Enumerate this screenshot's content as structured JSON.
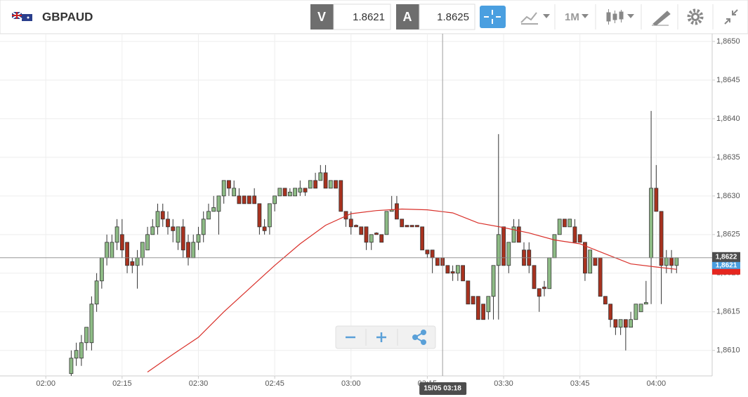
{
  "toolbar": {
    "symbol": "GBPAUD",
    "bid_label": "V",
    "bid": 1.8621,
    "ask_label": "A",
    "ask": 1.8625,
    "timeframe": "1M"
  },
  "chart_data": {
    "type": "candlestick",
    "up_color": "#8dbb85",
    "down_color": "#a8321f",
    "grid": true,
    "xlim": [
      "01:51",
      "04:11"
    ],
    "xticks": [
      "02:00",
      "02:15",
      "02:30",
      "02:45",
      "03:00",
      "03:15",
      "03:30",
      "03:45",
      "04:00"
    ],
    "ylim": [
      1.86067,
      1.8651
    ],
    "yticks": [
      {
        "value": 1.861,
        "label": "1,8610"
      },
      {
        "value": 1.8615,
        "label": "1,8615"
      },
      {
        "value": 1.862,
        "label": "1,8620"
      },
      {
        "value": 1.8625,
        "label": "1,8625"
      },
      {
        "value": 1.863,
        "label": "1,8630"
      },
      {
        "value": 1.8635,
        "label": "1,8635"
      },
      {
        "value": 1.864,
        "label": "1,8640"
      },
      {
        "value": 1.8645,
        "label": "1,8645"
      },
      {
        "value": 1.865,
        "label": "1,8650"
      }
    ],
    "categories": [
      "02:05",
      "02:06",
      "02:07",
      "02:08",
      "02:09",
      "02:10",
      "02:11",
      "02:12",
      "02:13",
      "02:14",
      "02:15",
      "02:16",
      "02:17",
      "02:18",
      "02:19",
      "02:20",
      "02:21",
      "02:22",
      "02:23",
      "02:24",
      "02:25",
      "02:26",
      "02:27",
      "02:28",
      "02:29",
      "02:30",
      "02:31",
      "02:32",
      "02:33",
      "02:34",
      "02:35",
      "02:36",
      "02:37",
      "02:38",
      "02:39",
      "02:40",
      "02:41",
      "02:42",
      "02:43",
      "02:44",
      "02:45",
      "02:46",
      "02:47",
      "02:48",
      "02:49",
      "02:50",
      "02:51",
      "02:52",
      "02:53",
      "02:54",
      "02:55",
      "02:56",
      "02:57",
      "02:58",
      "02:59",
      "03:00",
      "03:01",
      "03:02",
      "03:03",
      "03:04",
      "03:05",
      "03:06",
      "03:07",
      "03:08",
      "03:09",
      "03:10",
      "03:11",
      "03:12",
      "03:13",
      "03:14",
      "03:15",
      "03:16",
      "03:17",
      "03:18",
      "03:19",
      "03:20",
      "03:21",
      "03:22",
      "03:23",
      "03:24",
      "03:25",
      "03:26",
      "03:27",
      "03:28",
      "03:29",
      "03:30",
      "03:31",
      "03:32",
      "03:33",
      "03:34",
      "03:35",
      "03:36",
      "03:37",
      "03:38",
      "03:39",
      "03:40",
      "03:41",
      "03:42",
      "03:43",
      "03:44",
      "03:45",
      "03:46",
      "03:47",
      "03:48",
      "03:49",
      "03:50",
      "03:51",
      "03:52",
      "03:53",
      "03:54",
      "03:55",
      "03:56",
      "03:57",
      "03:58",
      "03:59",
      "04:00",
      "04:01",
      "04:02",
      "04:03",
      "04:04"
    ],
    "open": [
      1.8607,
      1.8609,
      1.8609,
      1.8611,
      1.8611,
      1.8616,
      1.8619,
      1.8622,
      1.8622,
      1.8624,
      1.8625,
      1.8624,
      1.86215,
      1.8621,
      1.8622,
      1.8623,
      1.8625,
      1.8626,
      1.8628,
      1.8627,
      1.8626,
      1.8624,
      1.8626,
      1.8624,
      1.8622,
      1.8624,
      1.8625,
      1.8627,
      1.8628,
      1.8628,
      1.863,
      1.8632,
      1.863,
      1.863,
      1.863,
      1.863,
      1.863,
      1.8629,
      1.8626,
      1.8626,
      1.8629,
      1.863,
      1.8631,
      1.863,
      1.863,
      1.86305,
      1.8631,
      1.8631,
      1.8632,
      1.8632,
      1.8633,
      1.8631,
      1.8632,
      1.8632,
      1.8628,
      1.8627,
      1.86262,
      1.8626,
      1.8626,
      1.8624,
      1.86252,
      1.8625,
      1.8625,
      1.8628,
      1.8629,
      1.8627,
      1.86262,
      1.86262,
      1.86262,
      1.8626,
      1.8623,
      1.8623,
      1.8622,
      1.8622,
      1.8621,
      1.86202,
      1.862,
      1.8621,
      1.8619,
      1.8617,
      1.8617,
      1.8616,
      1.8615,
      1.8617,
      1.8621,
      1.8626,
      1.8621,
      1.8624,
      1.8626,
      1.8623,
      1.8623,
      1.8621,
      1.8618,
      1.86182,
      1.8618,
      1.8622,
      1.8625,
      1.8627,
      1.8626,
      1.8626,
      1.8625,
      1.8624,
      1.862,
      1.8622,
      1.8622,
      1.8617,
      1.8616,
      1.8614,
      1.8613,
      1.8614,
      1.8613,
      1.8614,
      1.8615,
      1.8616,
      1.8622,
      1.8631,
      1.8628,
      1.8621,
      1.8622,
      1.8621
    ],
    "high": [
      1.861,
      1.8611,
      1.8612,
      1.8613,
      1.8617,
      1.862,
      1.8622,
      1.8625,
      1.8625,
      1.8627,
      1.8627,
      1.8624,
      1.8622,
      1.8623,
      1.8624,
      1.8626,
      1.8627,
      1.8629,
      1.8629,
      1.8628,
      1.8627,
      1.8626,
      1.8627,
      1.8625,
      1.8625,
      1.8626,
      1.8628,
      1.8629,
      1.863,
      1.863,
      1.8632,
      1.8632,
      1.8632,
      1.8631,
      1.863,
      1.863,
      1.8631,
      1.8629,
      1.8627,
      1.8629,
      1.863,
      1.8631,
      1.8631,
      1.8631,
      1.8631,
      1.8632,
      1.8631,
      1.8632,
      1.8633,
      1.8634,
      1.8634,
      1.8632,
      1.8632,
      1.8632,
      1.8628,
      1.8628,
      1.86263,
      1.8626,
      1.8626,
      1.8625,
      1.86253,
      1.8625,
      1.8628,
      1.863,
      1.863,
      1.8627,
      1.86262,
      1.86262,
      1.86262,
      1.8626,
      1.8623,
      1.8623,
      1.8622,
      1.8622,
      1.8621,
      1.8621,
      1.8621,
      1.8621,
      1.8619,
      1.8617,
      1.8617,
      1.8616,
      1.8617,
      1.8621,
      1.8638,
      1.8626,
      1.8624,
      1.8627,
      1.8627,
      1.8624,
      1.8624,
      1.8621,
      1.8618,
      1.8619,
      1.8622,
      1.8625,
      1.8627,
      1.8627,
      1.8627,
      1.8627,
      1.8625,
      1.8624,
      1.8623,
      1.8622,
      1.8622,
      1.8617,
      1.8616,
      1.8614,
      1.8614,
      1.8614,
      1.8615,
      1.8616,
      1.8616,
      1.8619,
      1.8641,
      1.8634,
      1.8628,
      1.8623,
      1.8623,
      1.8622
    ],
    "low": [
      1.8606,
      1.8608,
      1.8608,
      1.861,
      1.861,
      1.8615,
      1.8618,
      1.8621,
      1.8622,
      1.8623,
      1.8622,
      1.862,
      1.862,
      1.8618,
      1.8621,
      1.8623,
      1.8625,
      1.8625,
      1.8626,
      1.8625,
      1.8624,
      1.8623,
      1.8622,
      1.8621,
      1.8622,
      1.8623,
      1.8624,
      1.8627,
      1.8628,
      1.8625,
      1.8629,
      1.863,
      1.863,
      1.8629,
      1.8629,
      1.8629,
      1.8629,
      1.8625,
      1.8625,
      1.8625,
      1.8628,
      1.863,
      1.863,
      1.863,
      1.863,
      1.863,
      1.863,
      1.8631,
      1.8631,
      1.8632,
      1.8631,
      1.8631,
      1.8631,
      1.8628,
      1.8626,
      1.8625,
      1.8626,
      1.8625,
      1.8623,
      1.8623,
      1.8625,
      1.8624,
      1.8625,
      1.8628,
      1.8627,
      1.8626,
      1.8626,
      1.8626,
      1.8626,
      1.8623,
      1.8622,
      1.862,
      1.8621,
      1.8621,
      1.862,
      1.8619,
      1.8619,
      1.8619,
      1.8616,
      1.8616,
      1.8614,
      1.8614,
      1.8614,
      1.8614,
      1.8614,
      1.8621,
      1.862,
      1.8624,
      1.8624,
      1.8621,
      1.862,
      1.8618,
      1.8615,
      1.8617,
      1.8618,
      1.8622,
      1.8625,
      1.8626,
      1.8626,
      1.8624,
      1.8624,
      1.8619,
      1.862,
      1.8621,
      1.8617,
      1.8616,
      1.8613,
      1.8612,
      1.8612,
      1.861,
      1.8613,
      1.8614,
      1.8615,
      1.8616,
      1.8616,
      1.8628,
      1.8616,
      1.862,
      1.862,
      1.862
    ],
    "close": [
      1.8609,
      1.861,
      1.8611,
      1.8613,
      1.8616,
      1.8619,
      1.8622,
      1.8624,
      1.8624,
      1.8626,
      1.8623,
      1.8621,
      1.8621,
      1.8622,
      1.8624,
      1.8625,
      1.8626,
      1.8628,
      1.8627,
      1.8626,
      1.86255,
      1.8626,
      1.8623,
      1.8622,
      1.8624,
      1.8625,
      1.8627,
      1.8628,
      1.86285,
      1.863,
      1.8632,
      1.8631,
      1.8631,
      1.8629,
      1.8629,
      1.8629,
      1.8629,
      1.8626,
      1.86255,
      1.8629,
      1.863,
      1.8631,
      1.863,
      1.86305,
      1.8631,
      1.8631,
      1.86305,
      1.8632,
      1.8631,
      1.8633,
      1.8631,
      1.8632,
      1.8631,
      1.8628,
      1.8627,
      1.8626,
      1.8626,
      1.8625,
      1.8624,
      1.8625,
      1.8625,
      1.8624,
      1.8628,
      1.86282,
      1.8627,
      1.8626,
      1.8626,
      1.8626,
      1.8626,
      1.8623,
      1.86225,
      1.8622,
      1.8621,
      1.8621,
      1.862,
      1.862,
      1.8621,
      1.8619,
      1.8616,
      1.8616,
      1.8614,
      1.8614,
      1.8617,
      1.8621,
      1.8625,
      1.8621,
      1.8624,
      1.8626,
      1.8624,
      1.8621,
      1.8621,
      1.8618,
      1.8617,
      1.8618,
      1.8622,
      1.8625,
      1.8627,
      1.8626,
      1.8627,
      1.8624,
      1.8624,
      1.862,
      1.8623,
      1.8621,
      1.8617,
      1.8616,
      1.8614,
      1.8613,
      1.8614,
      1.8613,
      1.8614,
      1.8616,
      1.8616,
      1.86162,
      1.8631,
      1.8628,
      1.8621,
      1.8622,
      1.8621,
      1.8622
    ],
    "moving_average": {
      "color": "#d9302a",
      "x": [
        "02:20",
        "02:25",
        "02:30",
        "02:35",
        "02:40",
        "02:45",
        "02:50",
        "02:55",
        "03:00",
        "03:05",
        "03:10",
        "03:15",
        "03:20",
        "03:25",
        "03:30",
        "03:35",
        "03:40",
        "03:45",
        "03:50",
        "03:55",
        "04:00",
        "04:04"
      ],
      "values": [
        1.86072,
        1.86095,
        1.86117,
        1.8615,
        1.8618,
        1.8621,
        1.86238,
        1.86262,
        1.86277,
        1.86281,
        1.86283,
        1.86282,
        1.86278,
        1.86265,
        1.86259,
        1.86252,
        1.86243,
        1.86238,
        1.86225,
        1.86212,
        1.86208,
        1.86205
      ]
    },
    "crosshair": {
      "x_label": "15/05 03:18",
      "y": {
        "value": 1.8622,
        "label": "1,8622"
      }
    },
    "last_price": {
      "value": 1.8621,
      "label": "1,8621"
    }
  }
}
